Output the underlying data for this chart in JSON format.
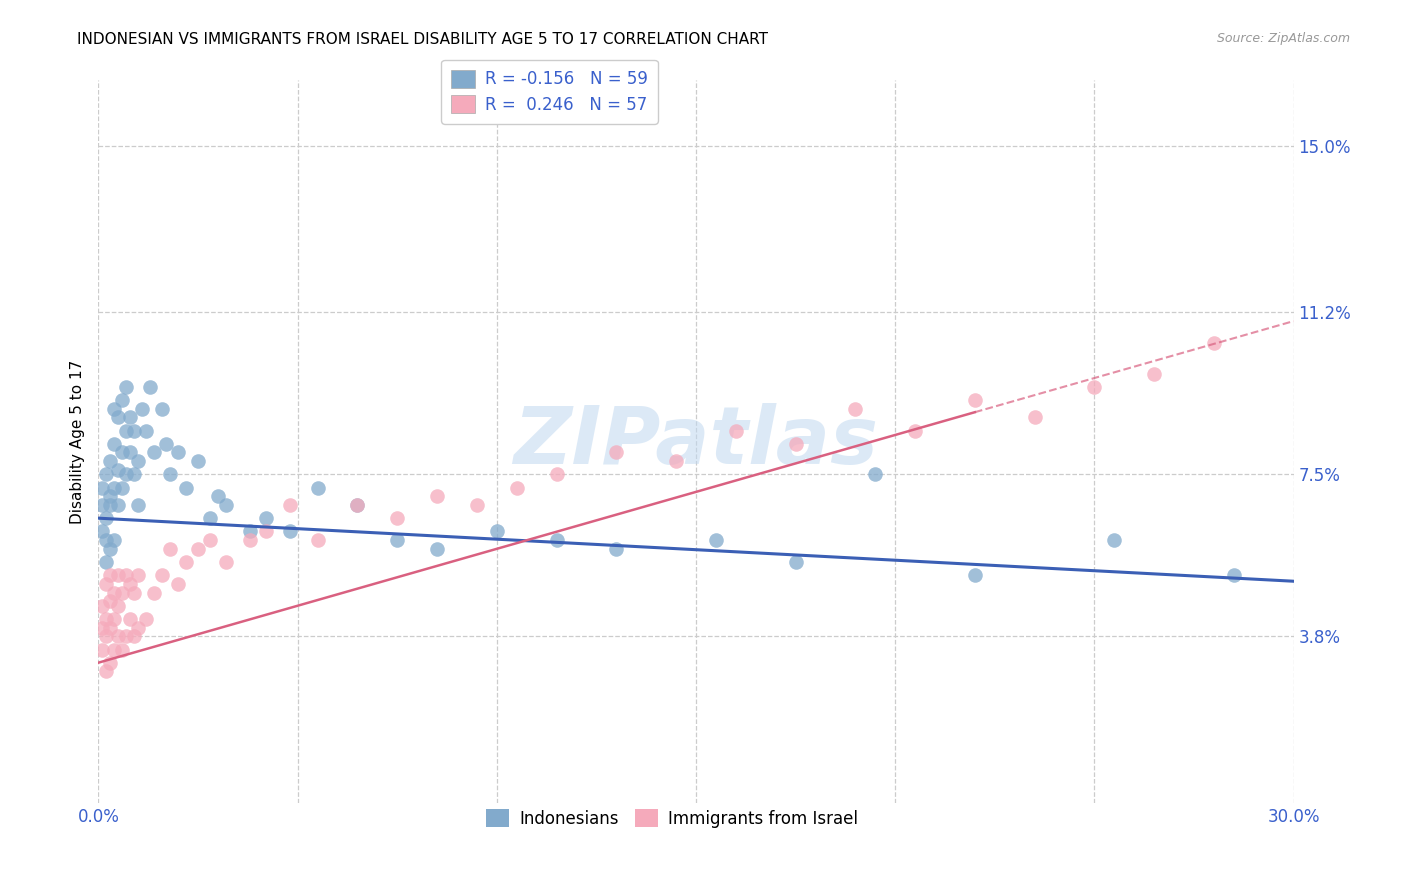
{
  "title": "INDONESIAN VS IMMIGRANTS FROM ISRAEL DISABILITY AGE 5 TO 17 CORRELATION CHART",
  "source": "Source: ZipAtlas.com",
  "ylabel": "Disability Age 5 to 17",
  "xlim": [
    0.0,
    0.3
  ],
  "ylim": [
    0.0,
    0.165
  ],
  "xtick_vals": [
    0.0,
    0.05,
    0.1,
    0.15,
    0.2,
    0.25,
    0.3
  ],
  "xtick_labels": [
    "0.0%",
    "",
    "",
    "",
    "",
    "",
    "30.0%"
  ],
  "ytick_vals": [
    0.038,
    0.075,
    0.112,
    0.15
  ],
  "ytick_labels": [
    "3.8%",
    "7.5%",
    "11.2%",
    "15.0%"
  ],
  "blue_scatter": "#82AACC",
  "pink_scatter": "#F5AABB",
  "blue_line": "#3B5FB5",
  "pink_line": "#D96080",
  "grid_color": "#CCCCCC",
  "watermark_color": "#C0D8F0",
  "indonesian_x": [
    0.001,
    0.001,
    0.001,
    0.002,
    0.002,
    0.002,
    0.002,
    0.003,
    0.003,
    0.003,
    0.003,
    0.004,
    0.004,
    0.004,
    0.004,
    0.005,
    0.005,
    0.005,
    0.006,
    0.006,
    0.006,
    0.007,
    0.007,
    0.007,
    0.008,
    0.008,
    0.009,
    0.009,
    0.01,
    0.01,
    0.011,
    0.012,
    0.013,
    0.014,
    0.016,
    0.017,
    0.018,
    0.02,
    0.022,
    0.025,
    0.028,
    0.03,
    0.032,
    0.038,
    0.042,
    0.048,
    0.055,
    0.065,
    0.075,
    0.085,
    0.1,
    0.115,
    0.13,
    0.155,
    0.175,
    0.195,
    0.22,
    0.255,
    0.285
  ],
  "indonesian_y": [
    0.062,
    0.068,
    0.072,
    0.055,
    0.06,
    0.065,
    0.075,
    0.058,
    0.07,
    0.078,
    0.068,
    0.06,
    0.072,
    0.082,
    0.09,
    0.068,
    0.076,
    0.088,
    0.072,
    0.08,
    0.092,
    0.075,
    0.085,
    0.095,
    0.08,
    0.088,
    0.075,
    0.085,
    0.068,
    0.078,
    0.09,
    0.085,
    0.095,
    0.08,
    0.09,
    0.082,
    0.075,
    0.08,
    0.072,
    0.078,
    0.065,
    0.07,
    0.068,
    0.062,
    0.065,
    0.062,
    0.072,
    0.068,
    0.06,
    0.058,
    0.062,
    0.06,
    0.058,
    0.06,
    0.055,
    0.075,
    0.052,
    0.06,
    0.052
  ],
  "israel_x": [
    0.001,
    0.001,
    0.001,
    0.002,
    0.002,
    0.002,
    0.002,
    0.003,
    0.003,
    0.003,
    0.003,
    0.004,
    0.004,
    0.004,
    0.005,
    0.005,
    0.005,
    0.006,
    0.006,
    0.007,
    0.007,
    0.008,
    0.008,
    0.009,
    0.009,
    0.01,
    0.01,
    0.012,
    0.014,
    0.016,
    0.018,
    0.02,
    0.022,
    0.025,
    0.028,
    0.032,
    0.038,
    0.042,
    0.048,
    0.055,
    0.065,
    0.075,
    0.085,
    0.095,
    0.105,
    0.115,
    0.13,
    0.145,
    0.16,
    0.175,
    0.19,
    0.205,
    0.22,
    0.235,
    0.25,
    0.265,
    0.28
  ],
  "israel_y": [
    0.035,
    0.04,
    0.045,
    0.03,
    0.038,
    0.042,
    0.05,
    0.032,
    0.04,
    0.046,
    0.052,
    0.035,
    0.042,
    0.048,
    0.038,
    0.045,
    0.052,
    0.035,
    0.048,
    0.038,
    0.052,
    0.042,
    0.05,
    0.038,
    0.048,
    0.04,
    0.052,
    0.042,
    0.048,
    0.052,
    0.058,
    0.05,
    0.055,
    0.058,
    0.06,
    0.055,
    0.06,
    0.062,
    0.068,
    0.06,
    0.068,
    0.065,
    0.07,
    0.068,
    0.072,
    0.075,
    0.08,
    0.078,
    0.085,
    0.082,
    0.09,
    0.085,
    0.092,
    0.088,
    0.095,
    0.098,
    0.105
  ],
  "blue_intercept": 0.065,
  "blue_slope": -0.048,
  "pink_intercept": 0.032,
  "pink_slope": 0.26
}
